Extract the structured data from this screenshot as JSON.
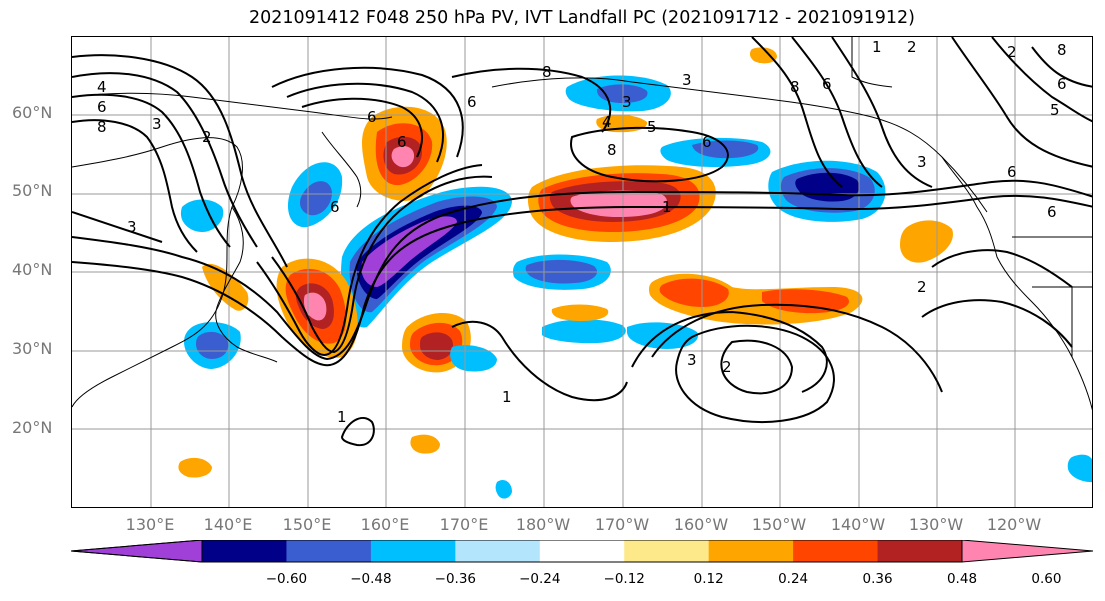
{
  "title": "2021091412 F048 250 hPa PV, IVT Landfall PC (2021091712 - 2021091912)",
  "map": {
    "projection": "lat-lon",
    "lon_range": [
      "120°E",
      "110°W"
    ],
    "lat_range": [
      "10°N",
      "70°N"
    ],
    "lat_labels": [
      "60°N",
      "50°N",
      "40°N",
      "30°N",
      "20°N"
    ],
    "lon_labels": [
      "130°E",
      "140°E",
      "150°E",
      "160°E",
      "170°E",
      "180°W",
      "170°W",
      "160°W",
      "150°W",
      "140°W",
      "130°W",
      "120°W"
    ],
    "gridlines": true,
    "contour_color": "#000000",
    "contour_labels": [
      "4",
      "6",
      "8",
      "3",
      "3",
      "2",
      "6",
      "6",
      "6",
      "6",
      "8",
      "8",
      "3",
      "3",
      "5",
      "6",
      "8",
      "6",
      "1",
      "1",
      "1",
      "3",
      "2",
      "2",
      "5",
      "6",
      "8",
      "6",
      "2",
      "1",
      "4",
      "3",
      "2",
      "6"
    ]
  },
  "colorbar": {
    "colors": [
      "#a040d8",
      "#000088",
      "#3a5ed0",
      "#00bfff",
      "#b3e5fc",
      "#ffffff",
      "#fde98a",
      "#ffa500",
      "#ff4500",
      "#b22222",
      "#ff85b0"
    ],
    "tick_labels": [
      "−0.60",
      "−0.48",
      "−0.36",
      "−0.24",
      "−0.12",
      "0.12",
      "0.24",
      "0.36",
      "0.48",
      "0.60"
    ],
    "extend": "both"
  }
}
